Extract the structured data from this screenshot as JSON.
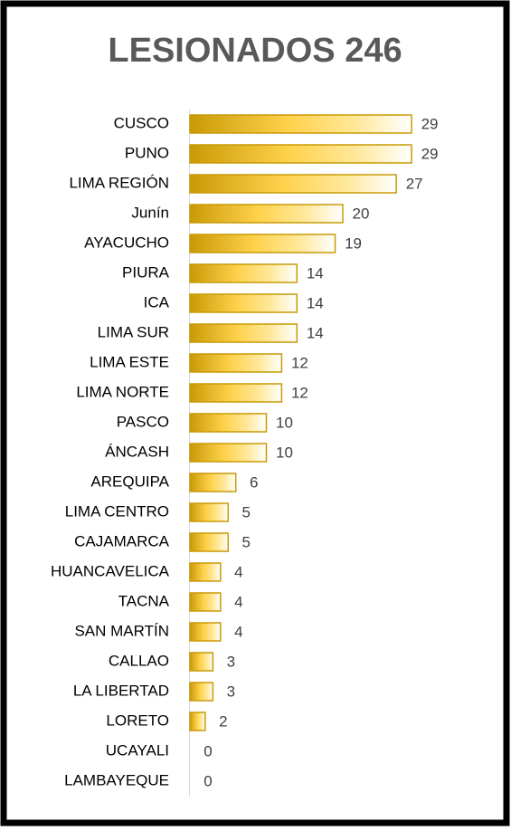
{
  "chart_data": {
    "type": "bar",
    "orientation": "horizontal",
    "title": "LESIONADOS 246",
    "categories": [
      "CUSCO",
      "PUNO",
      "LIMA REGIÓN",
      "Junín",
      "AYACUCHO",
      "PIURA",
      "ICA",
      "LIMA SUR",
      "LIMA ESTE",
      "LIMA NORTE",
      "PASCO",
      "ÁNCASH",
      "AREQUIPA",
      "LIMA CENTRO",
      "CAJAMARCA",
      "HUANCAVELICA",
      "TACNA",
      "SAN MARTÍN",
      "CALLAO",
      "LA LIBERTAD",
      "LORETO",
      "UCAYALI",
      "LAMBAYEQUE"
    ],
    "values": [
      29,
      29,
      27,
      20,
      19,
      14,
      14,
      14,
      12,
      12,
      10,
      10,
      6,
      5,
      5,
      4,
      4,
      4,
      3,
      3,
      2,
      0,
      0
    ],
    "color": "#c99a06"
  }
}
